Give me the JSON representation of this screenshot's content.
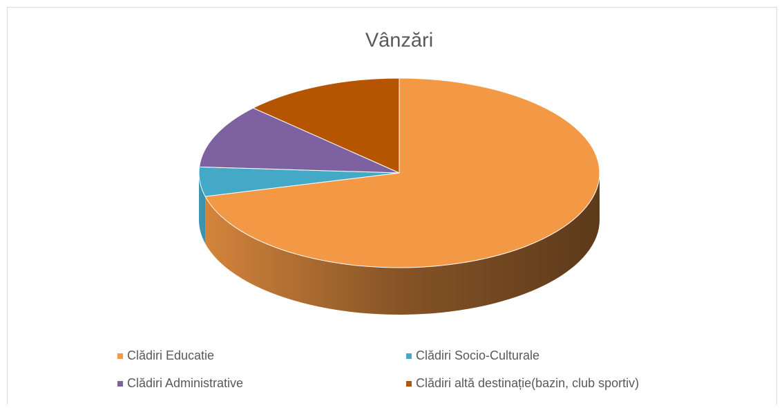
{
  "chart_data": {
    "type": "pie3d",
    "title": "Vânzări",
    "categories": [
      "Clădiri Educatie",
      "Clădiri Socio-Culturale",
      "Clădiri Administrative",
      "Clădiri altă destinație(bazin, club sportiv)"
    ],
    "values": [
      71,
      5,
      11,
      13
    ],
    "colors": [
      "#f39845",
      "#44a9c7",
      "#7e61a0",
      "#b55502"
    ],
    "legend": "bottom"
  }
}
